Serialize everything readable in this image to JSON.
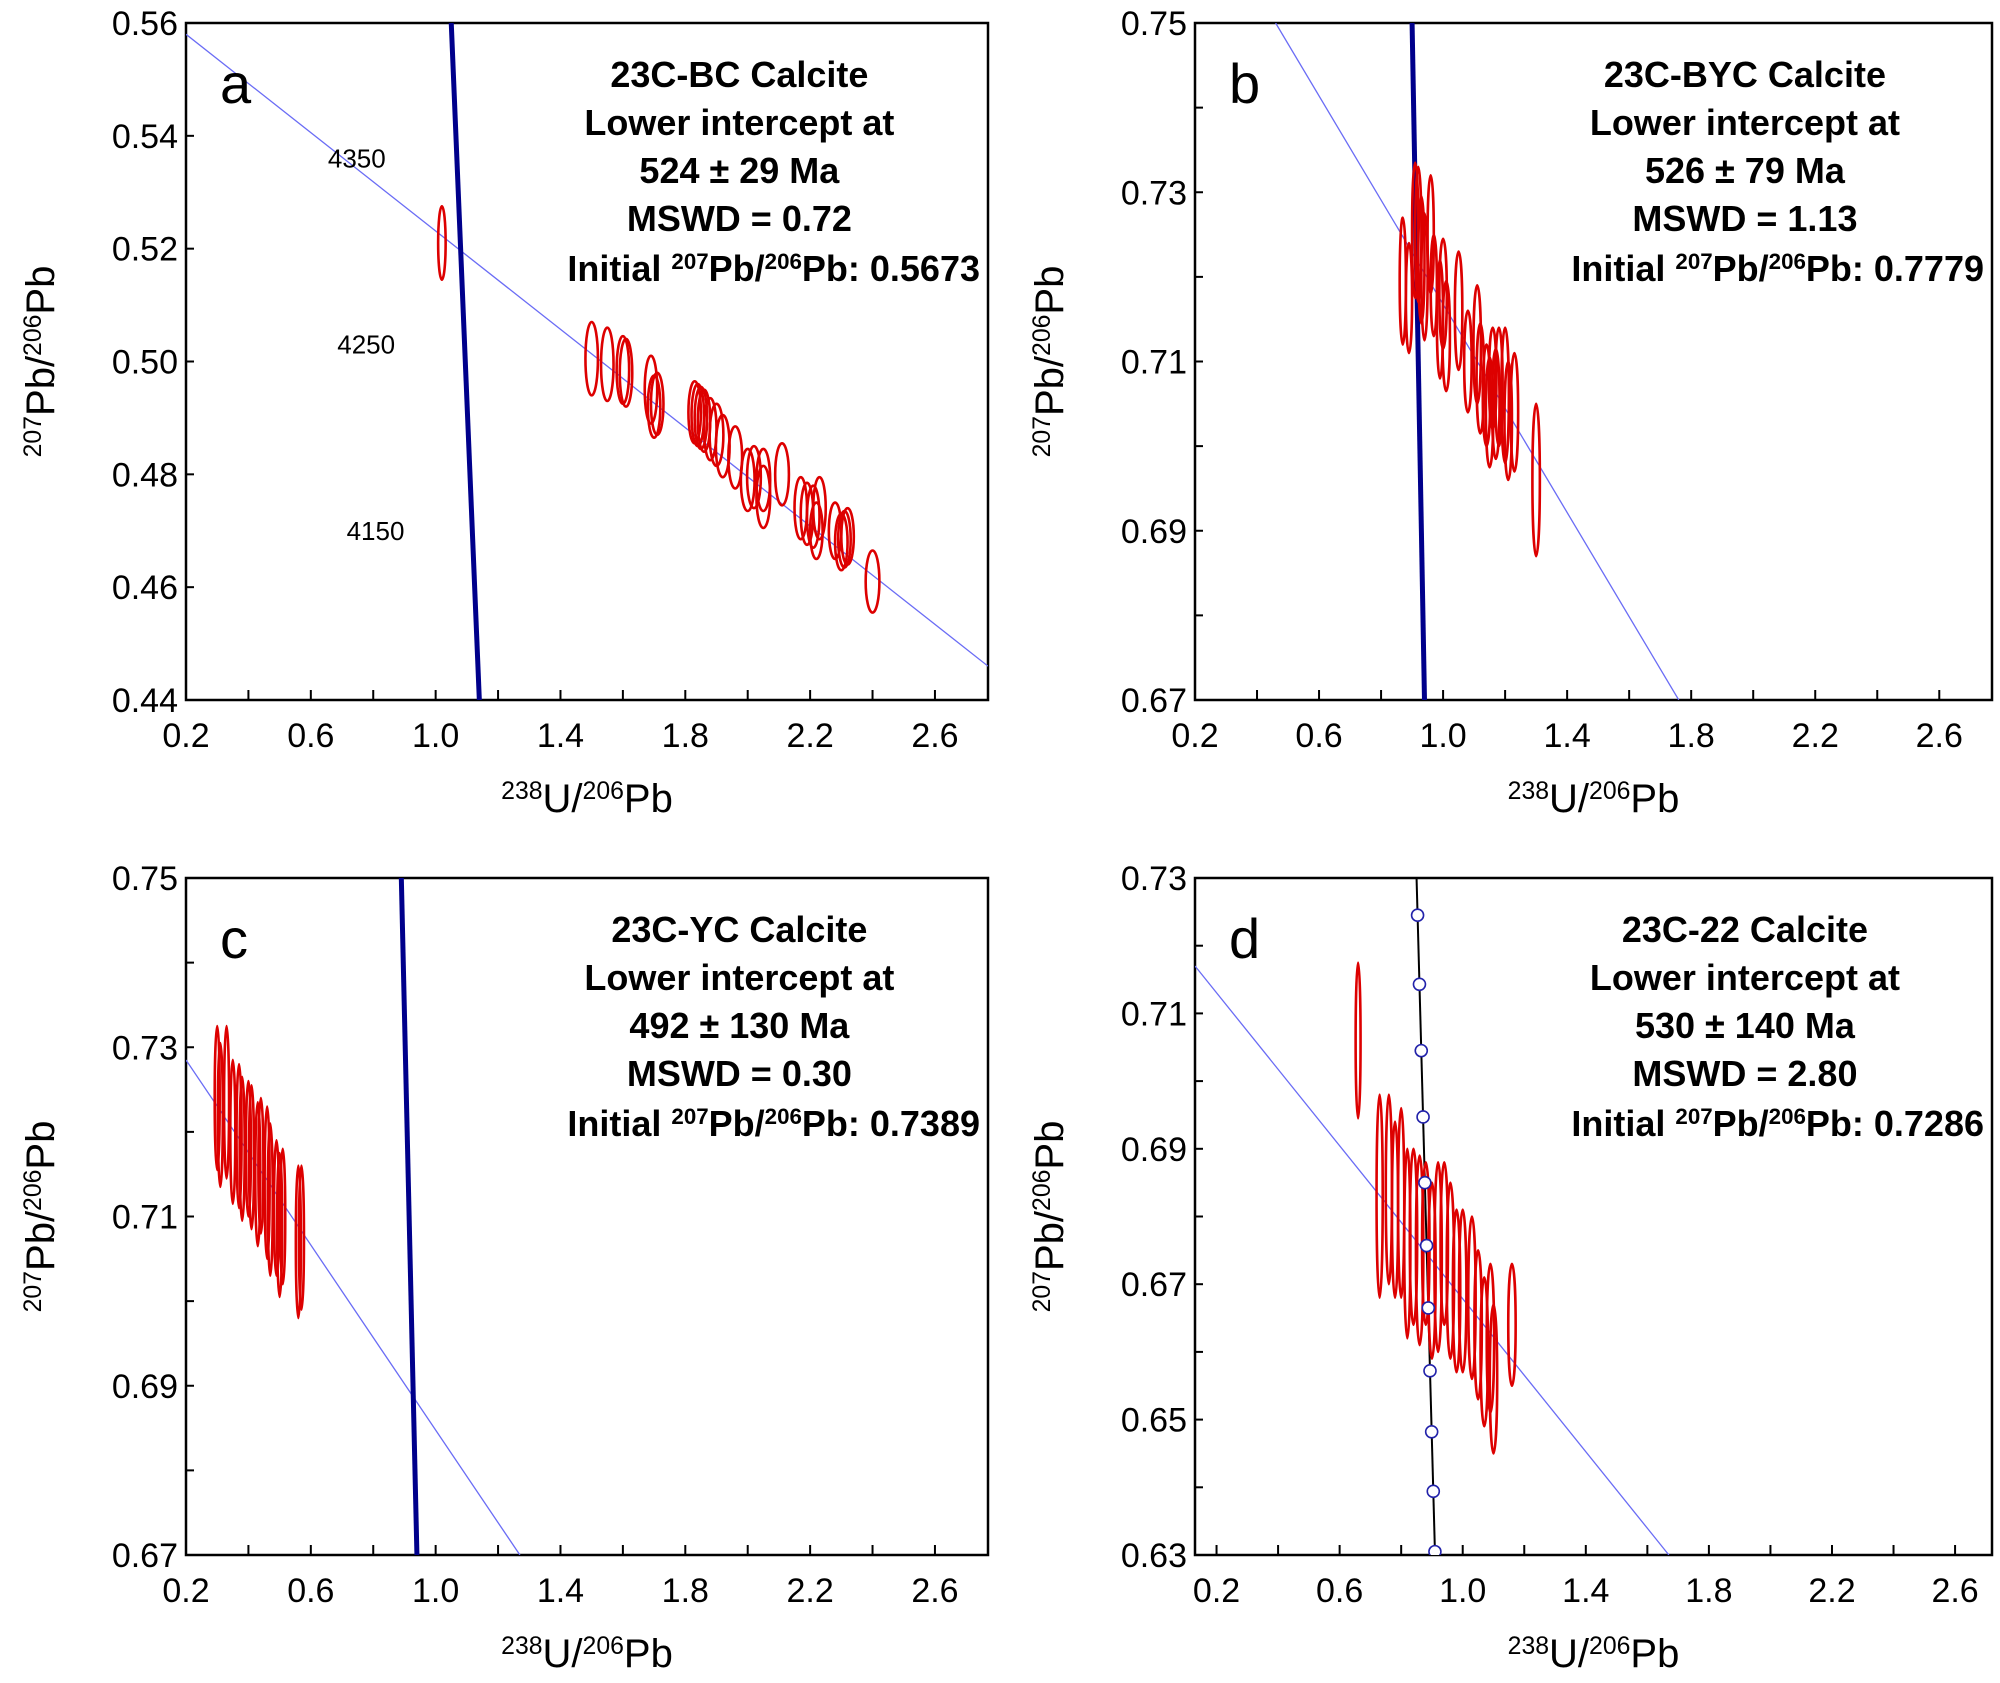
{
  "chart_data": [
    {
      "type": "scatter",
      "panel": "a",
      "title": "23C-BC Calcite",
      "annotation": [
        "23C-BC Calcite",
        "Lower intercept at",
        "524 ± 29 Ma",
        "MSWD = 0.72"
      ],
      "initial_ratio": {
        "prefix": "Initial ",
        "iso1": "207",
        "mid": "Pb/",
        "iso2": "206",
        "suffix": "Pb: 0.5673"
      },
      "xlabel": {
        "iso1": "238",
        "mid": "U/",
        "iso2": "206",
        "el": "Pb"
      },
      "ylabel": {
        "iso1": "207",
        "mid": "Pb/",
        "iso2": "206",
        "el": "Pb"
      },
      "xlim": [
        0.2,
        2.77
      ],
      "ylim": [
        0.44,
        0.56
      ],
      "xticks": [
        0.2,
        0.6,
        1.0,
        1.4,
        1.8,
        2.2,
        2.6
      ],
      "xtick_labels": [
        "0.2",
        "0.6",
        "1.0",
        "1.4",
        "1.8",
        "2.2",
        "2.6"
      ],
      "yticks": [
        0.44,
        0.46,
        0.48,
        0.5,
        0.52,
        0.54,
        0.56
      ],
      "ytick_labels": [
        "0.44",
        "0.46",
        "0.48",
        "0.50",
        "0.52",
        "0.54",
        "0.56"
      ],
      "regression_line": [
        [
          0.2,
          0.558
        ],
        [
          2.77,
          0.446
        ]
      ],
      "concordia": {
        "style": "thick",
        "points": [
          [
            1.05,
            0.56
          ],
          [
            1.14,
            0.44
          ]
        ],
        "age_labels": [
          {
            "text": "4350",
            "x": 0.84,
            "y": 0.536
          },
          {
            "text": "4250",
            "x": 0.87,
            "y": 0.503
          },
          {
            "text": "4150",
            "x": 0.9,
            "y": 0.47
          }
        ]
      },
      "ellipses": [
        [
          1.02,
          0.521,
          0.012,
          0.0065
        ],
        [
          1.5,
          0.5005,
          0.02,
          0.0065
        ],
        [
          1.55,
          0.4995,
          0.02,
          0.0065
        ],
        [
          1.6,
          0.4985,
          0.02,
          0.006
        ],
        [
          1.61,
          0.498,
          0.02,
          0.006
        ],
        [
          1.69,
          0.495,
          0.02,
          0.006
        ],
        [
          1.7,
          0.492,
          0.02,
          0.0055
        ],
        [
          1.71,
          0.4925,
          0.02,
          0.0055
        ],
        [
          1.83,
          0.491,
          0.02,
          0.0055
        ],
        [
          1.84,
          0.4905,
          0.02,
          0.0055
        ],
        [
          1.85,
          0.49,
          0.02,
          0.0055
        ],
        [
          1.86,
          0.4895,
          0.02,
          0.0055
        ],
        [
          1.88,
          0.488,
          0.02,
          0.0055
        ],
        [
          1.9,
          0.487,
          0.022,
          0.0055
        ],
        [
          1.92,
          0.485,
          0.022,
          0.0055
        ],
        [
          1.96,
          0.483,
          0.022,
          0.0055
        ],
        [
          2.0,
          0.479,
          0.022,
          0.0055
        ],
        [
          2.02,
          0.4795,
          0.022,
          0.0055
        ],
        [
          2.05,
          0.479,
          0.022,
          0.0055
        ],
        [
          2.05,
          0.476,
          0.022,
          0.0055
        ],
        [
          2.11,
          0.48,
          0.022,
          0.0055
        ],
        [
          2.17,
          0.474,
          0.02,
          0.0055
        ],
        [
          2.19,
          0.473,
          0.02,
          0.0055
        ],
        [
          2.21,
          0.4725,
          0.02,
          0.0055
        ],
        [
          2.23,
          0.474,
          0.02,
          0.0055
        ],
        [
          2.22,
          0.47,
          0.02,
          0.005
        ],
        [
          2.28,
          0.47,
          0.02,
          0.005
        ],
        [
          2.3,
          0.468,
          0.02,
          0.005
        ],
        [
          2.31,
          0.4685,
          0.02,
          0.005
        ],
        [
          2.32,
          0.469,
          0.02,
          0.005
        ],
        [
          2.4,
          0.461,
          0.022,
          0.0055
        ]
      ]
    },
    {
      "type": "scatter",
      "panel": "b",
      "title": "23C-BYC Calcite",
      "annotation": [
        "23C-BYC Calcite",
        "Lower intercept at",
        "526 ± 79 Ma",
        "MSWD = 1.13"
      ],
      "initial_ratio": {
        "prefix": "Initial ",
        "iso1": "207",
        "mid": "Pb/",
        "iso2": "206",
        "suffix": "Pb: 0.7779"
      },
      "xlabel": {
        "iso1": "238",
        "mid": "U/",
        "iso2": "206",
        "el": "Pb"
      },
      "ylabel": {
        "iso1": "207",
        "mid": "Pb/",
        "iso2": "206",
        "el": "Pb"
      },
      "xlim": [
        0.2,
        2.77
      ],
      "ylim": [
        0.67,
        0.75
      ],
      "xticks": [
        0.2,
        0.6,
        1.0,
        1.4,
        1.8,
        2.2,
        2.6
      ],
      "xtick_labels": [
        "0.2",
        "0.6",
        "1.0",
        "1.4",
        "1.8",
        "2.2",
        "2.6"
      ],
      "yticks": [
        0.67,
        0.68,
        0.69,
        0.7,
        0.71,
        0.72,
        0.73,
        0.74,
        0.75
      ],
      "ytick_labels": [
        "0.67",
        "",
        "0.69",
        "",
        "0.71",
        "",
        "0.73",
        "",
        "0.75"
      ],
      "regression_line": [
        [
          0.46,
          0.75
        ],
        [
          1.76,
          0.67
        ]
      ],
      "concordia": {
        "style": "thick",
        "points": [
          [
            0.9,
            0.75
          ],
          [
            0.94,
            0.67
          ]
        ],
        "age_labels": []
      },
      "ellipses": [
        [
          0.87,
          0.7195,
          0.01,
          0.0075
        ],
        [
          0.89,
          0.7175,
          0.01,
          0.0065
        ],
        [
          0.91,
          0.7255,
          0.01,
          0.008
        ],
        [
          0.92,
          0.725,
          0.01,
          0.008
        ],
        [
          0.93,
          0.722,
          0.01,
          0.0075
        ],
        [
          0.94,
          0.72,
          0.01,
          0.0075
        ],
        [
          0.96,
          0.725,
          0.01,
          0.007
        ],
        [
          0.97,
          0.719,
          0.01,
          0.006
        ],
        [
          0.99,
          0.715,
          0.01,
          0.007
        ],
        [
          1.0,
          0.718,
          0.012,
          0.0065
        ],
        [
          1.01,
          0.713,
          0.012,
          0.0065
        ],
        [
          1.05,
          0.716,
          0.012,
          0.007
        ],
        [
          1.08,
          0.71,
          0.012,
          0.006
        ],
        [
          1.11,
          0.712,
          0.012,
          0.007
        ],
        [
          1.12,
          0.708,
          0.012,
          0.0065
        ],
        [
          1.14,
          0.706,
          0.012,
          0.006
        ],
        [
          1.15,
          0.704,
          0.012,
          0.0065
        ],
        [
          1.16,
          0.708,
          0.012,
          0.006
        ],
        [
          1.17,
          0.705,
          0.012,
          0.0065
        ],
        [
          1.18,
          0.707,
          0.012,
          0.007
        ],
        [
          1.2,
          0.706,
          0.012,
          0.008
        ],
        [
          1.21,
          0.703,
          0.012,
          0.007
        ],
        [
          1.23,
          0.704,
          0.012,
          0.007
        ],
        [
          1.3,
          0.696,
          0.012,
          0.009
        ]
      ]
    },
    {
      "type": "scatter",
      "panel": "c",
      "title": "23C-YC Calcite",
      "annotation": [
        "23C-YC Calcite",
        "Lower intercept at",
        "492 ± 130 Ma",
        "MSWD = 0.30"
      ],
      "initial_ratio": {
        "prefix": "Initial ",
        "iso1": "207",
        "mid": "Pb/",
        "iso2": "206",
        "suffix": "Pb: 0.7389"
      },
      "xlabel": {
        "iso1": "238",
        "mid": "U/",
        "iso2": "206",
        "el": "Pb"
      },
      "ylabel": {
        "iso1": "207",
        "mid": "Pb/",
        "iso2": "206",
        "el": "Pb"
      },
      "xlim": [
        0.2,
        2.77
      ],
      "ylim": [
        0.67,
        0.75
      ],
      "xticks": [
        0.2,
        0.6,
        1.0,
        1.4,
        1.8,
        2.2,
        2.6
      ],
      "xtick_labels": [
        "0.2",
        "0.6",
        "1.0",
        "1.4",
        "1.8",
        "2.2",
        "2.6"
      ],
      "yticks": [
        0.67,
        0.68,
        0.69,
        0.7,
        0.71,
        0.72,
        0.73,
        0.74,
        0.75
      ],
      "ytick_labels": [
        "0.67",
        "",
        "0.69",
        "",
        "0.71",
        "",
        "0.73",
        "",
        "0.75"
      ],
      "regression_line": [
        [
          0.2,
          0.7285
        ],
        [
          1.27,
          0.67
        ]
      ],
      "concordia": {
        "style": "thick",
        "points": [
          [
            0.89,
            0.75
          ],
          [
            0.94,
            0.67
          ]
        ],
        "age_labels": []
      },
      "ellipses": [
        [
          0.3,
          0.724,
          0.008,
          0.0085
        ],
        [
          0.31,
          0.722,
          0.008,
          0.0085
        ],
        [
          0.33,
          0.7235,
          0.008,
          0.009
        ],
        [
          0.35,
          0.72,
          0.008,
          0.0085
        ],
        [
          0.37,
          0.7195,
          0.008,
          0.0085
        ],
        [
          0.38,
          0.718,
          0.008,
          0.0085
        ],
        [
          0.4,
          0.718,
          0.008,
          0.008
        ],
        [
          0.41,
          0.717,
          0.008,
          0.0085
        ],
        [
          0.43,
          0.715,
          0.008,
          0.0085
        ],
        [
          0.44,
          0.716,
          0.008,
          0.008
        ],
        [
          0.46,
          0.714,
          0.008,
          0.009
        ],
        [
          0.47,
          0.712,
          0.008,
          0.009
        ],
        [
          0.49,
          0.711,
          0.008,
          0.008
        ],
        [
          0.5,
          0.709,
          0.008,
          0.0085
        ],
        [
          0.51,
          0.71,
          0.008,
          0.008
        ],
        [
          0.56,
          0.707,
          0.008,
          0.009
        ],
        [
          0.57,
          0.7075,
          0.008,
          0.0085
        ]
      ]
    },
    {
      "type": "scatter",
      "panel": "d",
      "title": "23C-22 Calcite",
      "annotation": [
        "23C-22 Calcite",
        "Lower intercept at",
        "530 ± 140 Ma",
        "MSWD = 2.80"
      ],
      "initial_ratio": {
        "prefix": "Initial ",
        "iso1": "207",
        "mid": "Pb/",
        "iso2": "206",
        "suffix": "Pb: 0.7286"
      },
      "xlabel": {
        "iso1": "238",
        "mid": "U/",
        "iso2": "206",
        "el": "Pb"
      },
      "ylabel": {
        "iso1": "207",
        "mid": "Pb/",
        "iso2": "206",
        "el": "Pb"
      },
      "xlim": [
        0.13,
        2.72
      ],
      "ylim": [
        0.63,
        0.73
      ],
      "xticks": [
        0.2,
        0.6,
        1.0,
        1.4,
        1.8,
        2.2,
        2.6
      ],
      "xtick_labels": [
        "0.2",
        "0.6",
        "1.0",
        "1.4",
        "1.8",
        "2.2",
        "2.6"
      ],
      "yticks": [
        0.63,
        0.64,
        0.65,
        0.66,
        0.67,
        0.68,
        0.69,
        0.7,
        0.71,
        0.72,
        0.73
      ],
      "ytick_labels": [
        "0.63",
        "",
        "0.65",
        "",
        "0.67",
        "",
        "0.69",
        "",
        "0.71",
        "",
        "0.73"
      ],
      "regression_line": [
        [
          0.13,
          0.717
        ],
        [
          1.67,
          0.63
        ]
      ],
      "concordia": {
        "style": "thin-markers",
        "points": [
          [
            0.85,
            0.73
          ],
          [
            0.91,
            0.63
          ]
        ],
        "markers_y": [
          0.7245,
          0.7143,
          0.7045,
          0.6947,
          0.685,
          0.6757,
          0.6665,
          0.6572,
          0.6482,
          0.6394,
          0.6305
        ],
        "age_labels": []
      },
      "ellipses": [
        [
          0.66,
          0.706,
          0.008,
          0.0115
        ],
        [
          0.73,
          0.683,
          0.01,
          0.015
        ],
        [
          0.76,
          0.684,
          0.01,
          0.014
        ],
        [
          0.78,
          0.681,
          0.01,
          0.013
        ],
        [
          0.8,
          0.682,
          0.01,
          0.014
        ],
        [
          0.82,
          0.676,
          0.01,
          0.014
        ],
        [
          0.84,
          0.677,
          0.012,
          0.013
        ],
        [
          0.86,
          0.675,
          0.012,
          0.014
        ],
        [
          0.88,
          0.676,
          0.012,
          0.012
        ],
        [
          0.9,
          0.672,
          0.012,
          0.013
        ],
        [
          0.92,
          0.674,
          0.012,
          0.014
        ],
        [
          0.94,
          0.676,
          0.012,
          0.012
        ],
        [
          0.96,
          0.672,
          0.012,
          0.013
        ],
        [
          0.98,
          0.669,
          0.012,
          0.012
        ],
        [
          1.0,
          0.669,
          0.012,
          0.012
        ],
        [
          1.03,
          0.668,
          0.012,
          0.012
        ],
        [
          1.05,
          0.664,
          0.012,
          0.011
        ],
        [
          1.07,
          0.66,
          0.012,
          0.011
        ],
        [
          1.09,
          0.662,
          0.012,
          0.011
        ],
        [
          1.1,
          0.656,
          0.012,
          0.011
        ],
        [
          1.16,
          0.664,
          0.012,
          0.009
        ]
      ]
    }
  ],
  "panel_letters": [
    "a",
    "b",
    "c",
    "d"
  ],
  "colors": {
    "ellipse": "#dd0000",
    "regression": "#6a6cf5",
    "concordia_thick": "#00008b",
    "concordia_thin": "#000000",
    "marker_stroke": "#2222aa"
  }
}
